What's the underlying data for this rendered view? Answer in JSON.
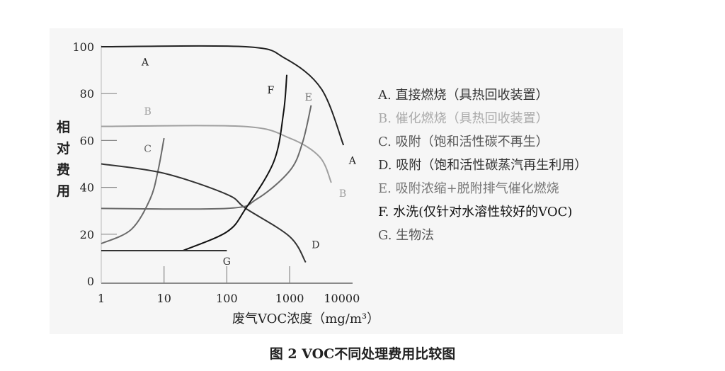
{
  "chart_data": {
    "type": "line",
    "title": "",
    "caption": "图 2 VOC不同处理费用比较图",
    "xlabel": "废气VOC浓度（mg/m³）",
    "ylabel": "相对费用",
    "xscale": "log",
    "xlim": [
      1,
      10000
    ],
    "ylim": [
      0,
      100
    ],
    "xticks": [
      "1",
      "10",
      "100",
      "1000",
      "10000"
    ],
    "yticks": [
      "0",
      "20",
      "40",
      "60",
      "80",
      "100"
    ],
    "grid": false,
    "legend_position": "right",
    "series": [
      {
        "name": "A",
        "legend": "A. 直接燃烧（具热回收装置）",
        "color": "#222222",
        "x": [
          1,
          200,
          850,
          3200,
          7200
        ],
        "y": [
          100,
          100,
          95,
          82,
          58
        ]
      },
      {
        "name": "B",
        "legend": "B. 催化燃烧（具热回收装置）",
        "color": "#a0a0a0",
        "x": [
          1,
          180,
          1000,
          3000,
          4600
        ],
        "y": [
          66,
          66,
          61,
          53,
          42
        ]
      },
      {
        "name": "C",
        "legend": "C. 吸附（饱和活性碳不再生）",
        "color": "#6a6a6a",
        "x": [
          1,
          3,
          6,
          8,
          10
        ],
        "y": [
          16,
          22,
          35,
          47,
          61
        ]
      },
      {
        "name": "D",
        "legend": "D. 吸附（饱和活性碳蒸汽再生利用）",
        "color": "#333333",
        "x": [
          1,
          10,
          100,
          200,
          1000,
          1800
        ],
        "y": [
          50,
          46,
          37,
          31,
          19,
          8
        ]
      },
      {
        "name": "E",
        "legend": "E. 吸附浓缩+脱附排气催化燃烧",
        "color": "#6a6a6a",
        "x": [
          1,
          100,
          300,
          1000,
          1600,
          2200
        ],
        "y": [
          31,
          31,
          35,
          47,
          59,
          75
        ]
      },
      {
        "name": "F",
        "legend": "F. 水洗(仅针对水溶性较好的VOC)",
        "color": "#111111",
        "x": [
          20,
          100,
          200,
          560,
          800,
          900
        ],
        "y": [
          13,
          21,
          31,
          51,
          72,
          88
        ]
      },
      {
        "name": "G",
        "legend": "G. 生物法",
        "color": "#333333",
        "x": [
          1,
          100
        ],
        "y": [
          13,
          13
        ]
      }
    ],
    "annotations": [
      {
        "text": "A",
        "x": 5,
        "y": 92
      },
      {
        "text": "A",
        "x": 10000,
        "y": 50
      },
      {
        "text": "B",
        "x": 5.5,
        "y": 71
      },
      {
        "text": "B",
        "x": 7000,
        "y": 36
      },
      {
        "text": "C",
        "x": 5.5,
        "y": 55
      },
      {
        "text": "D",
        "x": 2600,
        "y": 14
      },
      {
        "text": "E",
        "x": 2000,
        "y": 77
      },
      {
        "text": "F",
        "x": 500,
        "y": 80
      },
      {
        "text": "G",
        "x": 100,
        "y": 7
      }
    ]
  }
}
